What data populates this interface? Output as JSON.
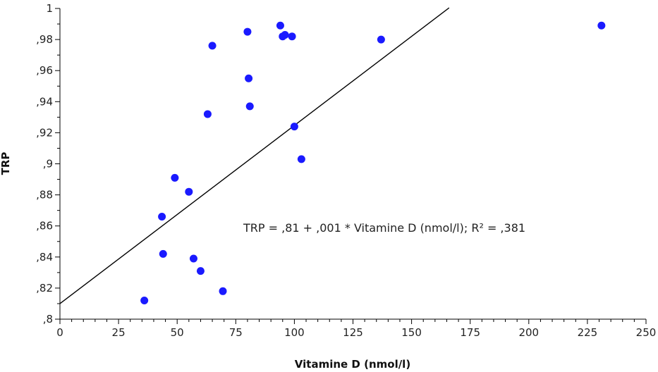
{
  "chart_data": {
    "type": "scatter",
    "title": "",
    "xlabel": "Vitamine D (nmol/l)",
    "ylabel": "TRP",
    "xlim": [
      0,
      250
    ],
    "ylim": [
      0.8,
      1.0
    ],
    "x_ticks": [
      0,
      25,
      50,
      75,
      100,
      125,
      150,
      175,
      200,
      225,
      250
    ],
    "x_tick_labels": [
      "0",
      "25",
      "50",
      "75",
      "100",
      "125",
      "150",
      "175",
      "200",
      "225",
      "250"
    ],
    "y_ticks": [
      0.8,
      0.82,
      0.84,
      0.86,
      0.88,
      0.9,
      0.92,
      0.94,
      0.96,
      0.98,
      1.0
    ],
    "y_tick_labels": [
      ",8",
      ",82",
      ",84",
      ",86",
      ",88",
      ",9",
      ",92",
      ",94",
      ",96",
      ",98",
      "1"
    ],
    "grid": false,
    "marker_color": "#1a1aff",
    "line_color": "#000000",
    "points": [
      {
        "x": 36,
        "y": 0.812
      },
      {
        "x": 43.5,
        "y": 0.866
      },
      {
        "x": 44,
        "y": 0.842
      },
      {
        "x": 49,
        "y": 0.891
      },
      {
        "x": 55,
        "y": 0.882
      },
      {
        "x": 57,
        "y": 0.839
      },
      {
        "x": 60,
        "y": 0.831
      },
      {
        "x": 63,
        "y": 0.932
      },
      {
        "x": 65,
        "y": 0.976
      },
      {
        "x": 69.5,
        "y": 0.818
      },
      {
        "x": 80,
        "y": 0.985
      },
      {
        "x": 80.5,
        "y": 0.955
      },
      {
        "x": 81,
        "y": 0.937
      },
      {
        "x": 94,
        "y": 0.989
      },
      {
        "x": 95,
        "y": 0.982
      },
      {
        "x": 96,
        "y": 0.983
      },
      {
        "x": 99,
        "y": 0.982
      },
      {
        "x": 100,
        "y": 0.924
      },
      {
        "x": 103,
        "y": 0.903
      },
      {
        "x": 137,
        "y": 0.98
      },
      {
        "x": 231,
        "y": 0.989
      }
    ],
    "regression": {
      "intercept": 0.81,
      "slope": 0.001147,
      "x_start": 0,
      "x_end": 166
    },
    "annotation": "TRP = ,81 + ,001 * Vitamine D (nmol/l); R² = ,381"
  }
}
